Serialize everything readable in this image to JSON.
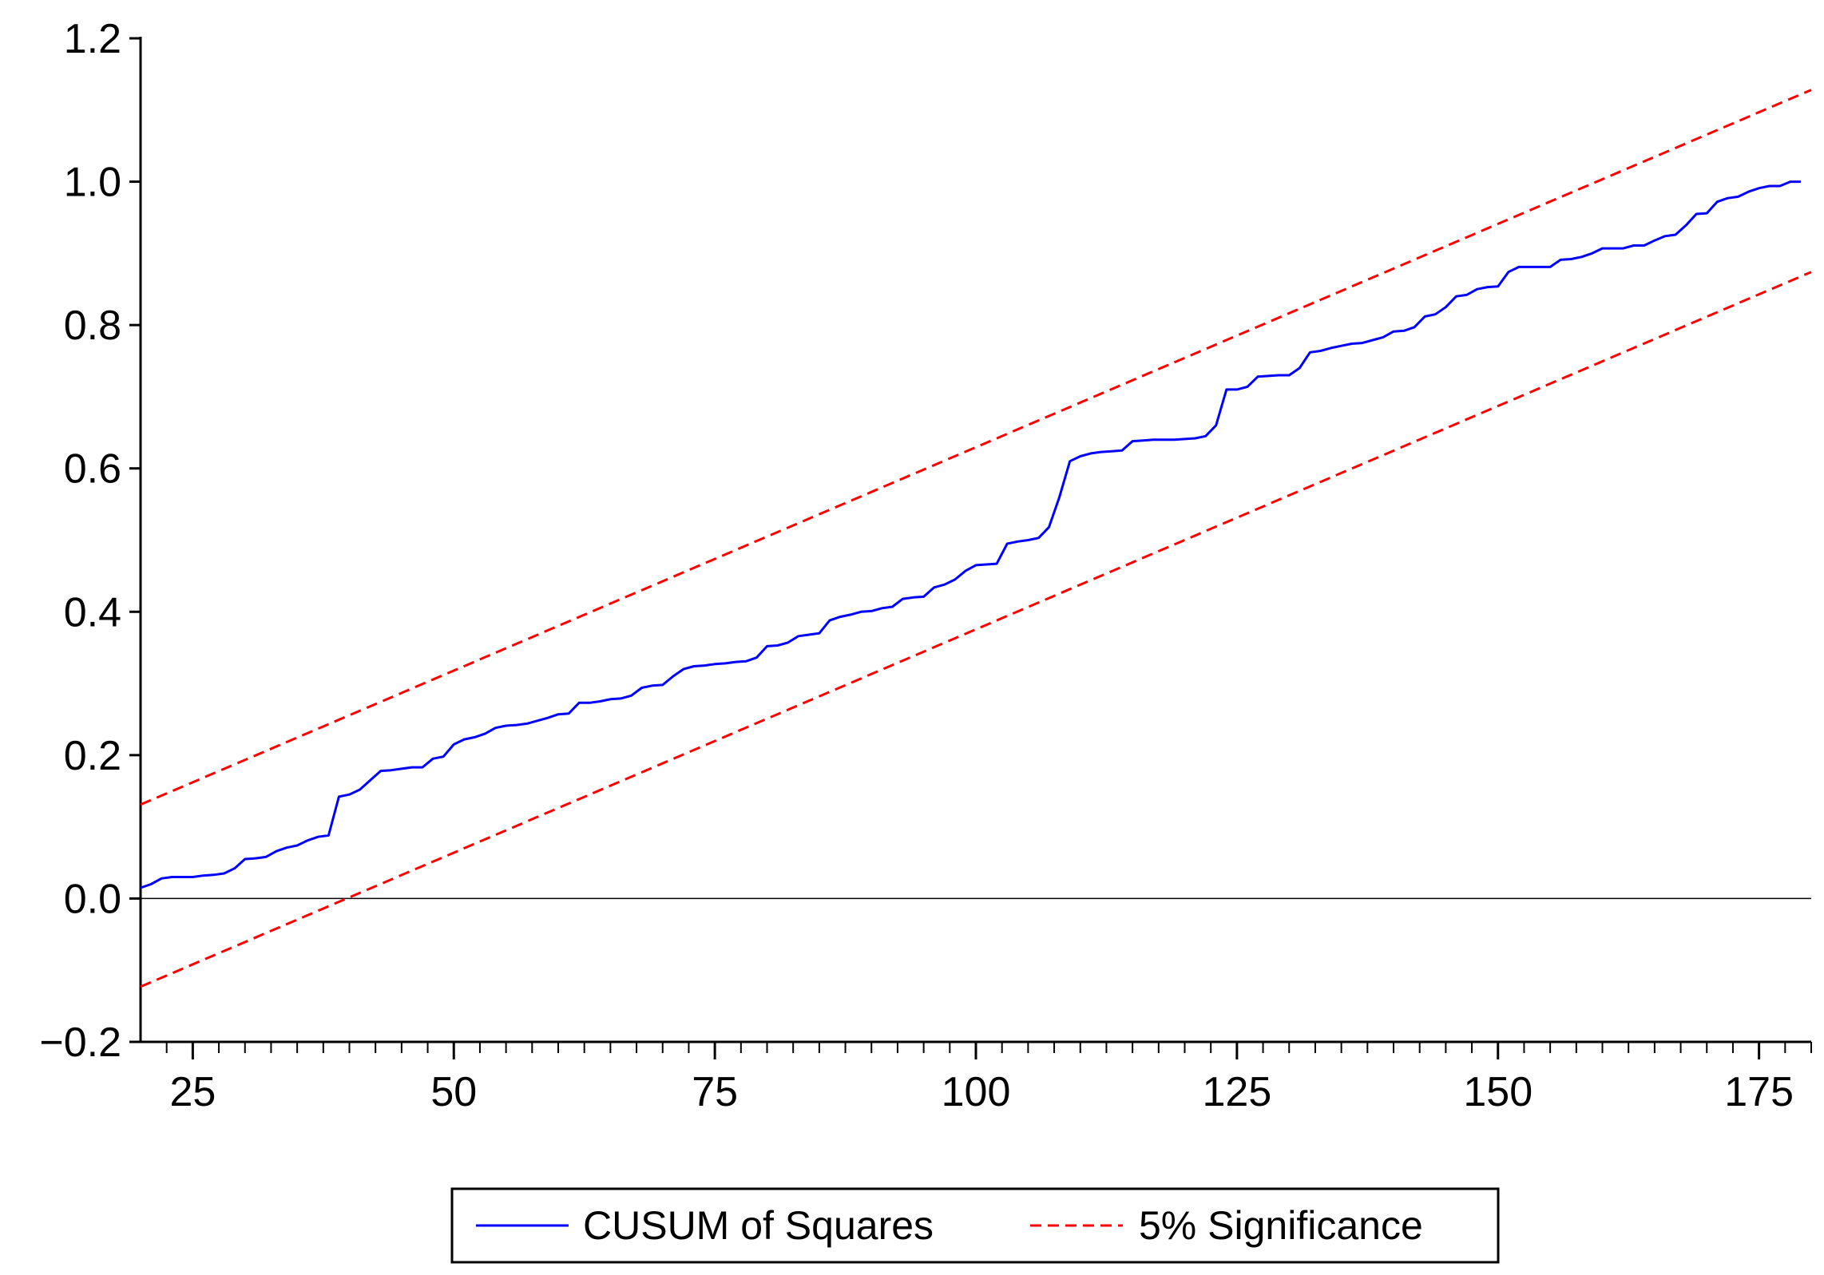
{
  "chart_data": {
    "type": "line",
    "title": "",
    "xlabel": "",
    "ylabel": "",
    "xlim": [
      20,
      180
    ],
    "ylim": [
      -0.2,
      1.2
    ],
    "x_ticks": [
      25,
      50,
      75,
      100,
      125,
      150,
      175
    ],
    "x_tick_labels": [
      "25",
      "50",
      "75",
      "100",
      "125",
      "150",
      "175"
    ],
    "y_ticks": [
      -0.2,
      0.0,
      0.2,
      0.4,
      0.6,
      0.8,
      1.0,
      1.2
    ],
    "y_tick_labels": [
      "−0.2",
      "0.0",
      "0.2",
      "0.4",
      "0.6",
      "0.8",
      "1.0",
      "1.2"
    ],
    "x_minor_step": 2.5,
    "zero_line": true,
    "grid": false,
    "legend": {
      "position": "bottom-center",
      "boxed": true
    },
    "series": [
      {
        "name": "CUSUM of Squares",
        "color": "#0000ff",
        "style": "solid",
        "points": [
          [
            20,
            0.015
          ],
          [
            21,
            0.02
          ],
          [
            22,
            0.028
          ],
          [
            23,
            0.03
          ],
          [
            24,
            0.03
          ],
          [
            25,
            0.03
          ],
          [
            26,
            0.032
          ],
          [
            27,
            0.033
          ],
          [
            28,
            0.035
          ],
          [
            29,
            0.042
          ],
          [
            30,
            0.055
          ],
          [
            31,
            0.056
          ],
          [
            32,
            0.058
          ],
          [
            33,
            0.066
          ],
          [
            34,
            0.071
          ],
          [
            35,
            0.074
          ],
          [
            36,
            0.081
          ],
          [
            37,
            0.086
          ],
          [
            38,
            0.088
          ],
          [
            39,
            0.142
          ],
          [
            40,
            0.145
          ],
          [
            41,
            0.152
          ],
          [
            42,
            0.165
          ],
          [
            43,
            0.178
          ],
          [
            44,
            0.179
          ],
          [
            45,
            0.181
          ],
          [
            46,
            0.183
          ],
          [
            47,
            0.183
          ],
          [
            48,
            0.195
          ],
          [
            49,
            0.198
          ],
          [
            50,
            0.215
          ],
          [
            51,
            0.222
          ],
          [
            52,
            0.225
          ],
          [
            53,
            0.23
          ],
          [
            54,
            0.238
          ],
          [
            55,
            0.241
          ],
          [
            56,
            0.242
          ],
          [
            57,
            0.244
          ],
          [
            58,
            0.248
          ],
          [
            59,
            0.252
          ],
          [
            60,
            0.257
          ],
          [
            61,
            0.258
          ],
          [
            62,
            0.273
          ],
          [
            63,
            0.273
          ],
          [
            64,
            0.275
          ],
          [
            65,
            0.278
          ],
          [
            66,
            0.279
          ],
          [
            67,
            0.283
          ],
          [
            68,
            0.294
          ],
          [
            69,
            0.297
          ],
          [
            70,
            0.298
          ],
          [
            71,
            0.31
          ],
          [
            72,
            0.32
          ],
          [
            73,
            0.324
          ],
          [
            74,
            0.325
          ],
          [
            75,
            0.327
          ],
          [
            76,
            0.328
          ],
          [
            77,
            0.33
          ],
          [
            78,
            0.331
          ],
          [
            79,
            0.336
          ],
          [
            80,
            0.352
          ],
          [
            81,
            0.353
          ],
          [
            82,
            0.357
          ],
          [
            83,
            0.366
          ],
          [
            84,
            0.368
          ],
          [
            85,
            0.37
          ],
          [
            86,
            0.388
          ],
          [
            87,
            0.393
          ],
          [
            88,
            0.396
          ],
          [
            89,
            0.4
          ],
          [
            90,
            0.401
          ],
          [
            91,
            0.405
          ],
          [
            92,
            0.407
          ],
          [
            93,
            0.418
          ],
          [
            94,
            0.42
          ],
          [
            95,
            0.421
          ],
          [
            96,
            0.434
          ],
          [
            97,
            0.438
          ],
          [
            98,
            0.445
          ],
          [
            99,
            0.457
          ],
          [
            100,
            0.465
          ],
          [
            101,
            0.466
          ],
          [
            102,
            0.467
          ],
          [
            103,
            0.495
          ],
          [
            104,
            0.498
          ],
          [
            105,
            0.5
          ],
          [
            106,
            0.503
          ],
          [
            107,
            0.518
          ],
          [
            108,
            0.56
          ],
          [
            109,
            0.61
          ],
          [
            110,
            0.617
          ],
          [
            111,
            0.621
          ],
          [
            112,
            0.623
          ],
          [
            113,
            0.624
          ],
          [
            114,
            0.625
          ],
          [
            115,
            0.638
          ],
          [
            116,
            0.639
          ],
          [
            117,
            0.64
          ],
          [
            118,
            0.64
          ],
          [
            119,
            0.64
          ],
          [
            120,
            0.641
          ],
          [
            121,
            0.642
          ],
          [
            122,
            0.645
          ],
          [
            123,
            0.66
          ],
          [
            124,
            0.71
          ],
          [
            125,
            0.71
          ],
          [
            126,
            0.714
          ],
          [
            127,
            0.728
          ],
          [
            128,
            0.729
          ],
          [
            129,
            0.73
          ],
          [
            130,
            0.73
          ],
          [
            131,
            0.74
          ],
          [
            132,
            0.762
          ],
          [
            133,
            0.764
          ],
          [
            134,
            0.768
          ],
          [
            135,
            0.771
          ],
          [
            136,
            0.774
          ],
          [
            137,
            0.775
          ],
          [
            138,
            0.779
          ],
          [
            139,
            0.783
          ],
          [
            140,
            0.791
          ],
          [
            141,
            0.792
          ],
          [
            142,
            0.797
          ],
          [
            143,
            0.812
          ],
          [
            144,
            0.815
          ],
          [
            145,
            0.825
          ],
          [
            146,
            0.84
          ],
          [
            147,
            0.842
          ],
          [
            148,
            0.85
          ],
          [
            149,
            0.853
          ],
          [
            150,
            0.854
          ],
          [
            151,
            0.874
          ],
          [
            152,
            0.881
          ],
          [
            153,
            0.881
          ],
          [
            154,
            0.881
          ],
          [
            155,
            0.881
          ],
          [
            156,
            0.891
          ],
          [
            157,
            0.892
          ],
          [
            158,
            0.895
          ],
          [
            159,
            0.9
          ],
          [
            160,
            0.907
          ],
          [
            161,
            0.907
          ],
          [
            162,
            0.907
          ],
          [
            163,
            0.911
          ],
          [
            164,
            0.911
          ],
          [
            165,
            0.918
          ],
          [
            166,
            0.924
          ],
          [
            167,
            0.926
          ],
          [
            168,
            0.939
          ],
          [
            169,
            0.955
          ],
          [
            170,
            0.956
          ],
          [
            171,
            0.972
          ],
          [
            172,
            0.977
          ],
          [
            173,
            0.979
          ],
          [
            174,
            0.986
          ],
          [
            175,
            0.991
          ],
          [
            176,
            0.994
          ],
          [
            177,
            0.994
          ],
          [
            178,
            1.0
          ],
          [
            179,
            1.0
          ]
        ]
      },
      {
        "name": "5% Significance",
        "color": "#ff0000",
        "style": "dashed",
        "points": [
          [
            20,
            0.131
          ],
          [
            180,
            1.128
          ]
        ]
      },
      {
        "name": "",
        "color": "#ff0000",
        "style": "dashed",
        "show_in_legend": false,
        "points": [
          [
            20,
            -0.123
          ],
          [
            180,
            0.874
          ]
        ]
      }
    ]
  }
}
